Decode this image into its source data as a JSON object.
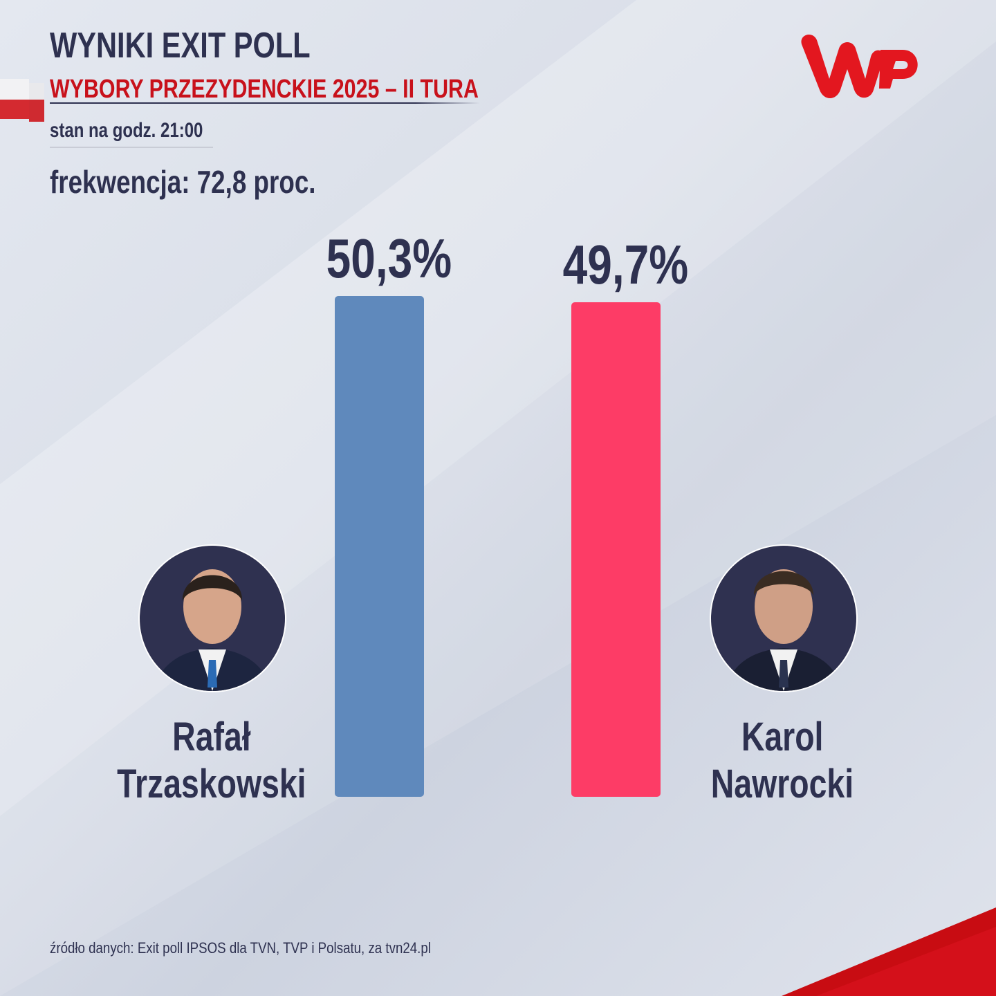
{
  "header": {
    "title": "WYNIKI EXIT POLL",
    "subtitle": "WYBORY PRZEZYDENCKIE 2025 – II TURA",
    "time": "stan na godz. 21:00",
    "turnout": "frekwencja: 72,8 proc."
  },
  "logo": {
    "text": "WP",
    "color": "#e3171f"
  },
  "chart_data": {
    "type": "bar",
    "categories": [
      "Rafał Trzaskowski",
      "Karol Nawrocki"
    ],
    "values": [
      50.3,
      49.7
    ],
    "value_labels": [
      "50,3%",
      "49,7%"
    ],
    "name_lines": [
      [
        "Rafał",
        "Trzaskowski"
      ],
      [
        "Karol",
        "Nawrocki"
      ]
    ],
    "colors": [
      "#5f89bc",
      "#fd3c66"
    ],
    "ylim": [
      0,
      50.3
    ],
    "grid": false,
    "axes_visible": false
  },
  "footer": {
    "source": "źródło danych: Exit poll IPSOS dla TVN, TVP i Polsatu, za tvn24.pl"
  }
}
